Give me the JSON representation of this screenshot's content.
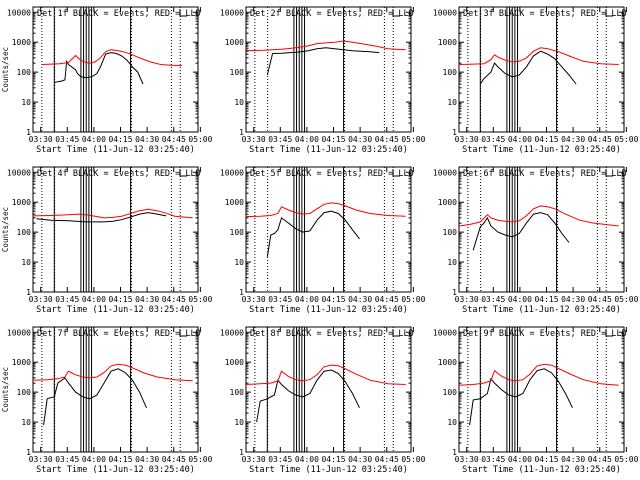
{
  "figure": {
    "background": "#ffffff",
    "colors": {
      "events": "#000000",
      "lld": "#ff0000",
      "axes": "#000000"
    }
  },
  "chart_data": [
    {
      "type": "line",
      "title": "Det 1f BLACK = Events, RED = LLD",
      "xlabel": "Start Time (11-Jun-12 03:25:40)",
      "ylabel": "Counts/sec",
      "x_ticks": [
        "03:30",
        "03:45",
        "04:00",
        "04:15",
        "04:30",
        "04:45",
        "05:00"
      ],
      "y_ticks": [
        "1",
        "10",
        "100",
        "1000",
        "10000"
      ],
      "yscale": "log",
      "xlim_minutes": [
        0,
        93
      ],
      "ylim": [
        1,
        15000
      ],
      "solid_vlines_minutes": [
        12,
        27,
        28.5,
        30,
        31.5,
        33,
        55
      ],
      "dotted_vlines_minutes": [
        5,
        12.2,
        55.5,
        78,
        83
      ],
      "series": [
        {
          "name": "BLACK = Events",
          "color": "#000000",
          "x": [
            12,
            14,
            16,
            18,
            19,
            20,
            24,
            25,
            27,
            30,
            33,
            36,
            38,
            41,
            44,
            47,
            50,
            53,
            56,
            59,
            62
          ],
          "y": [
            45,
            48,
            50,
            55,
            230,
            180,
            120,
            90,
            70,
            65,
            70,
            90,
            150,
            400,
            450,
            420,
            350,
            250,
            150,
            100,
            40
          ]
        },
        {
          "name": "RED = LLD",
          "color": "#ff0000",
          "x": [
            5,
            10,
            15,
            20,
            24,
            26,
            28,
            30,
            32,
            35,
            38,
            41,
            44,
            48,
            52,
            56,
            60,
            66,
            72,
            78,
            84
          ],
          "y": [
            180,
            185,
            190,
            210,
            360,
            280,
            230,
            210,
            200,
            220,
            300,
            480,
            560,
            520,
            460,
            380,
            300,
            220,
            180,
            170,
            165
          ]
        }
      ]
    },
    {
      "type": "line",
      "title": "Det 2f BLACK = Events, RED = LLD",
      "xlabel": "Start Time (11-Jun-12 03:25:40)",
      "ylabel": "",
      "x_ticks": [
        "03:30",
        "03:45",
        "04:00",
        "04:15",
        "04:30",
        "04:45",
        "05:00"
      ],
      "y_ticks": [
        "1",
        "10",
        "100",
        "1000",
        "10000"
      ],
      "yscale": "log",
      "xlim_minutes": [
        0,
        93
      ],
      "ylim": [
        1,
        15000
      ],
      "solid_vlines_minutes": [
        27,
        28.5,
        30,
        31.5,
        33,
        55
      ],
      "dotted_vlines_minutes": [
        5,
        12.2,
        55.5,
        78,
        83
      ],
      "series": [
        {
          "name": "BLACK = Events",
          "color": "#000000",
          "x": [
            12,
            15,
            20,
            25,
            30,
            35,
            40,
            45,
            50,
            55,
            60,
            65,
            70,
            75
          ],
          "y": [
            80,
            420,
            430,
            450,
            470,
            520,
            600,
            650,
            600,
            560,
            520,
            500,
            480,
            450
          ]
        },
        {
          "name": "RED = LLD",
          "color": "#ff0000",
          "x": [
            0,
            10,
            20,
            25,
            30,
            35,
            40,
            45,
            50,
            55,
            60,
            65,
            70,
            75,
            80,
            90
          ],
          "y": [
            520,
            540,
            580,
            620,
            680,
            750,
            900,
            950,
            1000,
            1100,
            1000,
            900,
            800,
            700,
            600,
            560
          ]
        }
      ]
    },
    {
      "type": "line",
      "title": "Det 3f BLACK = Events, RED = LLD",
      "xlabel": "Start Time (11-Jun-12 03:25:40)",
      "ylabel": "",
      "x_ticks": [
        "03:30",
        "03:45",
        "04:00",
        "04:15",
        "04:30",
        "04:45",
        "05:00"
      ],
      "y_ticks": [
        "1",
        "10",
        "100",
        "1000",
        "10000"
      ],
      "yscale": "log",
      "xlim_minutes": [
        0,
        93
      ],
      "ylim": [
        1,
        15000
      ],
      "solid_vlines_minutes": [
        12,
        27,
        28.5,
        30,
        31.5,
        33,
        55
      ],
      "dotted_vlines_minutes": [
        5,
        12.2,
        55.5,
        78,
        83
      ],
      "series": [
        {
          "name": "BLACK = Events",
          "color": "#000000",
          "x": [
            12,
            14,
            18,
            20,
            22,
            26,
            30,
            34,
            38,
            42,
            46,
            50,
            54,
            58,
            62,
            66
          ],
          "y": [
            40,
            60,
            100,
            200,
            150,
            90,
            70,
            80,
            150,
            350,
            500,
            400,
            280,
            150,
            80,
            40
          ]
        },
        {
          "name": "RED = LLD",
          "color": "#ff0000",
          "x": [
            0,
            8,
            14,
            18,
            20,
            22,
            26,
            30,
            34,
            38,
            42,
            46,
            50,
            56,
            62,
            70,
            80,
            90
          ],
          "y": [
            180,
            185,
            190,
            260,
            380,
            320,
            250,
            220,
            230,
            300,
            500,
            650,
            600,
            480,
            350,
            230,
            190,
            180
          ]
        }
      ]
    },
    {
      "type": "line",
      "title": "Det 4f BLACK = Events, RED = LLD",
      "xlabel": "Start Time (11-Jun-12 03:25:40)",
      "ylabel": "Counts/sec",
      "x_ticks": [
        "03:30",
        "03:45",
        "04:00",
        "04:15",
        "04:30",
        "04:45",
        "05:00"
      ],
      "y_ticks": [
        "1",
        "10",
        "100",
        "1000",
        "10000"
      ],
      "yscale": "log",
      "xlim_minutes": [
        0,
        93
      ],
      "ylim": [
        1,
        15000
      ],
      "solid_vlines_minutes": [
        12,
        27,
        28.5,
        30,
        31.5,
        33,
        55
      ],
      "dotted_vlines_minutes": [
        5,
        12.2,
        55.5,
        78,
        83
      ],
      "series": [
        {
          "name": "BLACK = Events",
          "color": "#000000",
          "x": [
            2,
            10,
            20,
            30,
            40,
            45,
            50,
            55,
            60,
            65,
            70,
            75
          ],
          "y": [
            280,
            250,
            240,
            220,
            220,
            230,
            260,
            320,
            400,
            450,
            400,
            350
          ]
        },
        {
          "name": "RED = LLD",
          "color": "#ff0000",
          "x": [
            0,
            10,
            20,
            25,
            30,
            35,
            40,
            45,
            50,
            55,
            60,
            65,
            70,
            75,
            80,
            90
          ],
          "y": [
            350,
            360,
            380,
            400,
            380,
            340,
            300,
            310,
            340,
            420,
            520,
            580,
            520,
            430,
            340,
            300
          ]
        }
      ]
    },
    {
      "type": "line",
      "title": "Det 5f BLACK = Events, RED = LLD",
      "xlabel": "Start Time (11-Jun-12 03:25:40)",
      "ylabel": "",
      "x_ticks": [
        "03:30",
        "03:45",
        "04:00",
        "04:15",
        "04:30",
        "04:45",
        "05:00"
      ],
      "y_ticks": [
        "1",
        "10",
        "100",
        "1000",
        "10000"
      ],
      "yscale": "log",
      "xlim_minutes": [
        0,
        93
      ],
      "ylim": [
        1,
        15000
      ],
      "solid_vlines_minutes": [
        27,
        28.5,
        30,
        31.5,
        33,
        55
      ],
      "dotted_vlines_minutes": [
        5,
        12.2,
        55.5,
        78,
        83
      ],
      "series": [
        {
          "name": "BLACK = Events",
          "color": "#000000",
          "x": [
            12,
            14,
            16,
            18,
            20,
            24,
            28,
            32,
            36,
            40,
            44,
            48,
            52,
            56,
            60,
            64
          ],
          "y": [
            15,
            80,
            90,
            120,
            300,
            200,
            130,
            100,
            110,
            250,
            450,
            500,
            420,
            250,
            120,
            60
          ]
        },
        {
          "name": "RED = LLD",
          "color": "#ff0000",
          "x": [
            0,
            8,
            14,
            18,
            20,
            24,
            28,
            32,
            36,
            40,
            44,
            48,
            52,
            56,
            62,
            70,
            80,
            90
          ],
          "y": [
            330,
            340,
            360,
            420,
            700,
            550,
            450,
            400,
            420,
            600,
            850,
            950,
            900,
            750,
            550,
            420,
            360,
            340
          ]
        }
      ]
    },
    {
      "type": "line",
      "title": "Det 6f BLACK = Events, RED = LLD",
      "xlabel": "Start Time (11-Jun-12 03:25:40)",
      "ylabel": "",
      "x_ticks": [
        "03:30",
        "03:45",
        "04:00",
        "04:15",
        "04:30",
        "04:45",
        "05:00"
      ],
      "y_ticks": [
        "1",
        "10",
        "100",
        "1000",
        "10000"
      ],
      "yscale": "log",
      "xlim_minutes": [
        0,
        93
      ],
      "ylim": [
        1,
        15000
      ],
      "solid_vlines_minutes": [
        27,
        28.5,
        30,
        31.5,
        33,
        55
      ],
      "dotted_vlines_minutes": [
        5,
        12.2,
        55.5,
        78,
        83
      ],
      "series": [
        {
          "name": "BLACK = Events",
          "color": "#000000",
          "x": [
            8,
            12,
            14,
            16,
            18,
            22,
            26,
            30,
            34,
            38,
            42,
            46,
            50,
            54,
            58,
            62
          ],
          "y": [
            25,
            150,
            200,
            300,
            160,
            100,
            80,
            70,
            90,
            200,
            400,
            450,
            380,
            200,
            90,
            45
          ]
        },
        {
          "name": "RED = LLD",
          "color": "#ff0000",
          "x": [
            0,
            6,
            12,
            16,
            18,
            22,
            26,
            30,
            34,
            38,
            42,
            46,
            50,
            54,
            60,
            68,
            76,
            90
          ],
          "y": [
            160,
            180,
            220,
            380,
            300,
            250,
            230,
            220,
            240,
            350,
            600,
            750,
            700,
            600,
            400,
            250,
            200,
            160
          ]
        }
      ]
    },
    {
      "type": "line",
      "title": "Det 7f BLACK = Events, RED = LLD",
      "xlabel": "Start Time (11-Jun-12 03:25:40)",
      "ylabel": "Counts/sec",
      "x_ticks": [
        "03:30",
        "03:45",
        "04:00",
        "04:15",
        "04:30",
        "04:45",
        "05:00"
      ],
      "y_ticks": [
        "1",
        "10",
        "100",
        "1000",
        "10000"
      ],
      "yscale": "log",
      "xlim_minutes": [
        0,
        93
      ],
      "ylim": [
        1,
        15000
      ],
      "solid_vlines_minutes": [
        12,
        27,
        28.5,
        30,
        31.5,
        33,
        55
      ],
      "dotted_vlines_minutes": [
        5,
        12.2,
        55.5,
        78,
        83
      ],
      "series": [
        {
          "name": "BLACK = Events",
          "color": "#000000",
          "x": [
            6,
            8,
            10,
            12,
            14,
            18,
            20,
            24,
            28,
            32,
            36,
            40,
            44,
            48,
            52,
            56,
            60,
            64
          ],
          "y": [
            8,
            60,
            65,
            70,
            200,
            300,
            200,
            100,
            70,
            60,
            80,
            200,
            500,
            600,
            450,
            250,
            100,
            30
          ]
        },
        {
          "name": "RED = LLD",
          "color": "#ff0000",
          "x": [
            0,
            8,
            14,
            18,
            20,
            24,
            28,
            32,
            36,
            40,
            44,
            48,
            52,
            56,
            62,
            70,
            80,
            90
          ],
          "y": [
            250,
            260,
            280,
            320,
            500,
            380,
            320,
            300,
            320,
            450,
            750,
            850,
            800,
            650,
            450,
            320,
            260,
            240
          ]
        }
      ]
    },
    {
      "type": "line",
      "title": "Det 8f BLACK = Events, RED = LLD",
      "xlabel": "Start Time (11-Jun-12 03:25:40)",
      "ylabel": "",
      "x_ticks": [
        "03:30",
        "03:45",
        "04:00",
        "04:15",
        "04:30",
        "04:45",
        "05:00"
      ],
      "y_ticks": [
        "1",
        "10",
        "100",
        "1000",
        "10000"
      ],
      "yscale": "log",
      "xlim_minutes": [
        0,
        93
      ],
      "ylim": [
        1,
        15000
      ],
      "solid_vlines_minutes": [
        12,
        27,
        28.5,
        30,
        31.5,
        33,
        55
      ],
      "dotted_vlines_minutes": [
        5,
        12.2,
        55.5,
        78,
        83
      ],
      "series": [
        {
          "name": "BLACK = Events",
          "color": "#000000",
          "x": [
            6,
            8,
            12,
            16,
            18,
            20,
            24,
            28,
            32,
            36,
            40,
            44,
            48,
            52,
            56,
            60,
            64
          ],
          "y": [
            10,
            50,
            60,
            80,
            250,
            180,
            110,
            80,
            70,
            90,
            250,
            500,
            550,
            420,
            220,
            90,
            30
          ]
        },
        {
          "name": "RED = LLD",
          "color": "#ff0000",
          "x": [
            0,
            8,
            14,
            18,
            20,
            24,
            28,
            32,
            36,
            40,
            44,
            48,
            52,
            56,
            62,
            70,
            80,
            90
          ],
          "y": [
            180,
            190,
            200,
            240,
            500,
            330,
            260,
            240,
            260,
            380,
            700,
            800,
            760,
            600,
            400,
            250,
            190,
            180
          ]
        }
      ]
    },
    {
      "type": "line",
      "title": "Det 9f BLACK = Events, RED = LLD",
      "xlabel": "Start Time (11-Jun-12 03:25:40)",
      "ylabel": "",
      "x_ticks": [
        "03:30",
        "03:45",
        "04:00",
        "04:15",
        "04:30",
        "04:45",
        "05:00"
      ],
      "y_ticks": [
        "1",
        "10",
        "100",
        "1000",
        "10000"
      ],
      "yscale": "log",
      "xlim_minutes": [
        0,
        93
      ],
      "ylim": [
        1,
        15000
      ],
      "solid_vlines_minutes": [
        12,
        27,
        28.5,
        30,
        31.5,
        33,
        55
      ],
      "dotted_vlines_minutes": [
        5,
        12.2,
        55.5,
        78,
        83
      ],
      "series": [
        {
          "name": "BLACK = Events",
          "color": "#000000",
          "x": [
            6,
            8,
            12,
            16,
            18,
            20,
            24,
            28,
            32,
            36,
            40,
            44,
            48,
            52,
            56,
            60,
            64
          ],
          "y": [
            8,
            55,
            60,
            90,
            280,
            200,
            120,
            80,
            70,
            90,
            260,
            520,
            600,
            450,
            230,
            90,
            30
          ]
        },
        {
          "name": "RED = LLD",
          "color": "#ff0000",
          "x": [
            0,
            8,
            14,
            18,
            20,
            24,
            28,
            32,
            36,
            40,
            44,
            48,
            52,
            56,
            62,
            70,
            80,
            90
          ],
          "y": [
            170,
            180,
            200,
            240,
            520,
            340,
            260,
            240,
            260,
            400,
            750,
            850,
            800,
            620,
            420,
            260,
            190,
            170
          ]
        }
      ]
    }
  ]
}
